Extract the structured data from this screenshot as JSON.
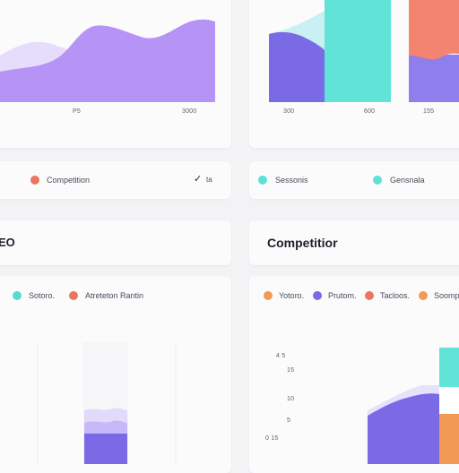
{
  "top_left_chart": {
    "ticks": [
      "P5",
      "3000"
    ]
  },
  "top_right_chart": {
    "ticks": [
      "300",
      "600",
      "155"
    ]
  },
  "legend_row_left": {
    "item_label": "Competition",
    "dropdown_value": "ta"
  },
  "legend_row_right": {
    "items": [
      {
        "label": "Sessonis",
        "color": "#5de0d8"
      },
      {
        "label": "Gensnala",
        "color": "#5de0d8"
      }
    ]
  },
  "left_section": {
    "title": "EO",
    "legend": [
      {
        "label": "Sotoro.",
        "color": "#58d9d2"
      },
      {
        "label": "Atreteton Rantin",
        "color": "#ea7660"
      }
    ]
  },
  "right_section": {
    "title": "Competitior",
    "legend": [
      {
        "label": "Yotoro.",
        "color": "#f09a55"
      },
      {
        "label": "Prutom.",
        "color": "#7b6ae6"
      },
      {
        "label": "Tacloos.",
        "color": "#ea7660"
      },
      {
        "label": "Soomp",
        "color": "#f09a55"
      }
    ],
    "y_ticks": [
      "4 5",
      "15",
      "10",
      "5",
      "0 15"
    ]
  },
  "colors": {
    "lavender": "#b594f5",
    "indigo": "#7b6ae6",
    "teal": "#62e3d8",
    "coral": "#f28470",
    "orange": "#f09a55",
    "competition_dot": "#ea7660"
  }
}
